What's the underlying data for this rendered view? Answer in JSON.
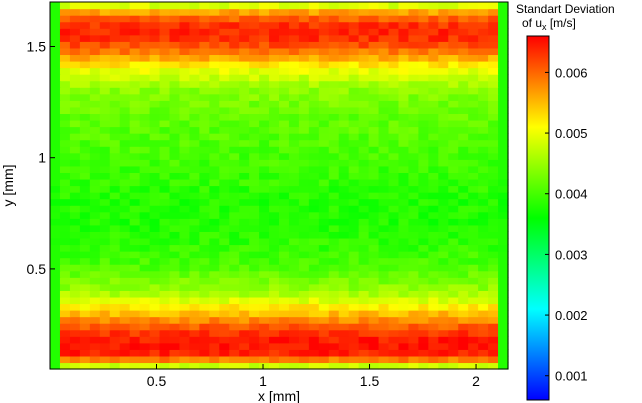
{
  "chart_data": {
    "type": "heatmap",
    "title": "",
    "xlabel": "x [mm]",
    "ylabel": "y [mm]",
    "xlim": [
      0,
      2.15
    ],
    "ylim": [
      0.05,
      1.7
    ],
    "xticks": [
      0.5,
      1,
      1.5,
      2
    ],
    "xtick_labels": [
      "0.5",
      "1",
      "1.5",
      "2"
    ],
    "yticks": [
      0.5,
      1,
      1.5
    ],
    "ytick_labels": [
      "0.5",
      "1",
      "1.5"
    ],
    "grid": false,
    "colorbar": {
      "title_line1": "Standart Deviation",
      "title_line2_prefix": "of u",
      "title_line2_sub": "x",
      "title_line2_suffix": " [m/s]",
      "range": [
        0.0006,
        0.0066
      ],
      "ticks": [
        0.001,
        0.002,
        0.003,
        0.004,
        0.005,
        0.006
      ],
      "tick_labels": [
        "0.001",
        "0.002",
        "0.003",
        "0.004",
        "0.005",
        "0.006"
      ],
      "colors": [
        "#0000ff",
        "#00ffff",
        "#00ff00",
        "#ffff00",
        "#ff0000"
      ],
      "placement": "right"
    },
    "profile_y": [
      0.05,
      0.08,
      0.12,
      0.16,
      0.2,
      0.25,
      0.3,
      0.35,
      0.4,
      0.5,
      0.6,
      0.7,
      0.8,
      0.9,
      1.0,
      1.1,
      1.2,
      1.3,
      1.4,
      1.45,
      1.5,
      1.55,
      1.6,
      1.65,
      1.7
    ],
    "profile_values": [
      0.004,
      0.0056,
      0.0064,
      0.0065,
      0.0064,
      0.006,
      0.0055,
      0.005,
      0.0045,
      0.0041,
      0.0039,
      0.0038,
      0.0038,
      0.0039,
      0.004,
      0.0041,
      0.0042,
      0.0044,
      0.005,
      0.0056,
      0.0061,
      0.0064,
      0.0063,
      0.0058,
      0.0045
    ]
  }
}
